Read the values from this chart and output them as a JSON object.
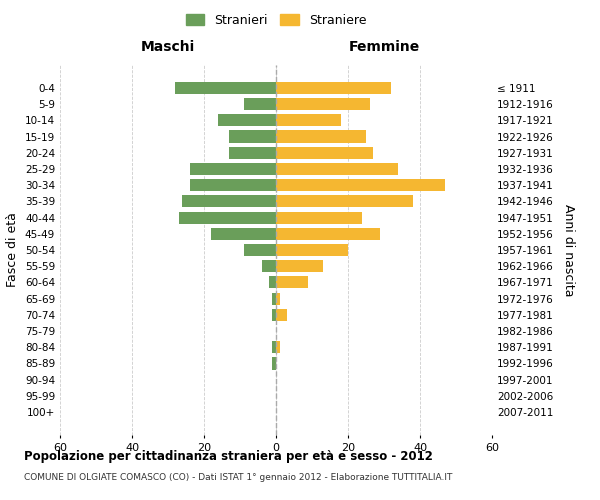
{
  "age_groups": [
    "0-4",
    "5-9",
    "10-14",
    "15-19",
    "20-24",
    "25-29",
    "30-34",
    "35-39",
    "40-44",
    "45-49",
    "50-54",
    "55-59",
    "60-64",
    "65-69",
    "70-74",
    "75-79",
    "80-84",
    "85-89",
    "90-94",
    "95-99",
    "100+"
  ],
  "birth_years": [
    "2007-2011",
    "2002-2006",
    "1997-2001",
    "1992-1996",
    "1987-1991",
    "1982-1986",
    "1977-1981",
    "1972-1976",
    "1967-1971",
    "1962-1966",
    "1957-1961",
    "1952-1956",
    "1947-1951",
    "1942-1946",
    "1937-1941",
    "1932-1936",
    "1927-1931",
    "1922-1926",
    "1917-1921",
    "1912-1916",
    "≤ 1911"
  ],
  "maschi": [
    28,
    9,
    16,
    13,
    13,
    24,
    24,
    26,
    27,
    18,
    9,
    4,
    2,
    1,
    1,
    0,
    1,
    1,
    0,
    0,
    0
  ],
  "femmine": [
    32,
    26,
    18,
    25,
    27,
    34,
    47,
    38,
    24,
    29,
    20,
    13,
    9,
    1,
    3,
    0,
    1,
    0,
    0,
    0,
    0
  ],
  "color_maschi": "#6a9e5a",
  "color_femmine": "#f5b731",
  "color_grid": "#cccccc",
  "color_dashed": "#aaaaaa",
  "title": "Popolazione per cittadinanza straniera per età e sesso - 2012",
  "subtitle": "COMUNE DI OLGIATE COMASCO (CO) - Dati ISTAT 1° gennaio 2012 - Elaborazione TUTTITALIA.IT",
  "xlabel_left": "Maschi",
  "xlabel_right": "Femmine",
  "ylabel_left": "Fasce di età",
  "ylabel_right": "Anni di nascita",
  "legend_maschi": "Stranieri",
  "legend_femmine": "Straniere",
  "xlim": 60
}
